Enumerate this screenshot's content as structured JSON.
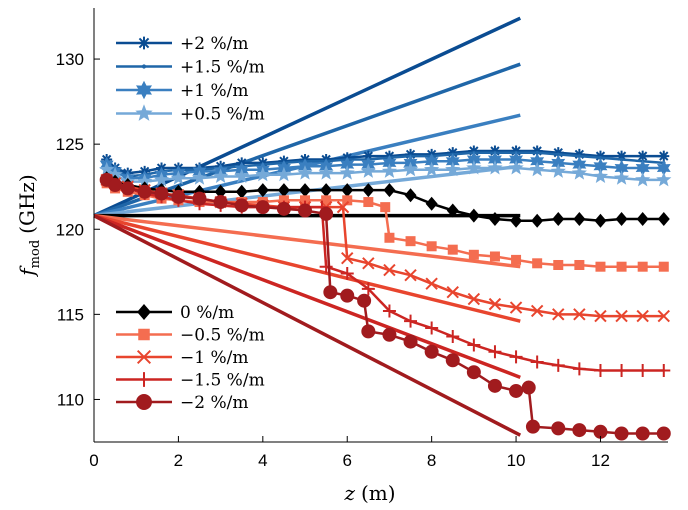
{
  "chart_data": {
    "type": "line",
    "xlabel": "z (m)",
    "xlabel_var": "z",
    "xlabel_unit": "(m)",
    "ylabel": "f_mod (GHz)",
    "ylabel_var": "f",
    "ylabel_sub": "mod",
    "ylabel_unit": "(GHz)",
    "xlim": [
      0,
      13.6
    ],
    "ylim": [
      107.5,
      133
    ],
    "xticks": [
      0,
      2,
      4,
      6,
      8,
      10,
      12
    ],
    "yticks": [
      110,
      115,
      120,
      125,
      130
    ],
    "grid": false,
    "legends": [
      {
        "placement": "top-left",
        "entries": [
          "+2 %/m",
          "+1.5 %/m",
          "+1 %/m",
          "+0.5 %/m"
        ]
      },
      {
        "placement": "bottom-left",
        "entries": [
          "0 %/m",
          "−0.5 %/m",
          "−1 %/m",
          "−1.5 %/m",
          "−2 %/m"
        ]
      }
    ],
    "reference_lines": [
      {
        "slope": "+2 %/m",
        "color": "#0a4c92",
        "points": [
          [
            0,
            120.8
          ],
          [
            10.1,
            132.4
          ]
        ]
      },
      {
        "slope": "+1.5 %/m",
        "color": "#1f66a8",
        "points": [
          [
            0,
            120.8
          ],
          [
            10.1,
            129.7
          ]
        ]
      },
      {
        "slope": "+1 %/m",
        "color": "#3a7fc0",
        "points": [
          [
            0,
            120.8
          ],
          [
            10.1,
            126.7
          ]
        ]
      },
      {
        "slope": "+0.5 %/m",
        "color": "#75a9d8",
        "points": [
          [
            0,
            120.8
          ],
          [
            10.1,
            123.7
          ]
        ]
      },
      {
        "slope": "0 %/m",
        "color": "#000000",
        "points": [
          [
            0,
            120.8
          ],
          [
            10.1,
            120.8
          ]
        ]
      },
      {
        "slope": "−0.5 %/m",
        "color": "#f46d50",
        "points": [
          [
            0,
            120.8
          ],
          [
            10.1,
            117.8
          ]
        ]
      },
      {
        "slope": "−1 %/m",
        "color": "#e8452e",
        "points": [
          [
            0,
            120.8
          ],
          [
            10.1,
            114.6
          ]
        ]
      },
      {
        "slope": "−1.5 %/m",
        "color": "#cc2522",
        "points": [
          [
            0,
            120.8
          ],
          [
            10.1,
            111.3
          ]
        ]
      },
      {
        "slope": "−2 %/m",
        "color": "#a11b1e",
        "points": [
          [
            0,
            120.8
          ],
          [
            10.1,
            107.9
          ]
        ]
      }
    ],
    "series": [
      {
        "name": "+2 %/m",
        "color": "#0a4c92",
        "marker": "asterisk",
        "points": [
          [
            0.3,
            124.1
          ],
          [
            0.5,
            123.6
          ],
          [
            0.8,
            123.3
          ],
          [
            1.2,
            123.4
          ],
          [
            1.6,
            123.6
          ],
          [
            2,
            123.6
          ],
          [
            2.5,
            123.6
          ],
          [
            3,
            123.7
          ],
          [
            3.5,
            123.9
          ],
          [
            4,
            123.9
          ],
          [
            4.5,
            124.0
          ],
          [
            5,
            124.1
          ],
          [
            5.5,
            124.1
          ],
          [
            6,
            124.2
          ],
          [
            6.5,
            124.3
          ],
          [
            7,
            124.3
          ],
          [
            7.5,
            124.4
          ],
          [
            8,
            124.4
          ],
          [
            8.5,
            124.5
          ],
          [
            9,
            124.6
          ],
          [
            9.5,
            124.6
          ],
          [
            10,
            124.6
          ],
          [
            10.5,
            124.6
          ],
          [
            11,
            124.5
          ],
          [
            11.5,
            124.4
          ],
          [
            12,
            124.3
          ],
          [
            12.5,
            124.3
          ],
          [
            13,
            124.3
          ],
          [
            13.5,
            124.3
          ]
        ]
      },
      {
        "name": "+1.5 %/m",
        "color": "#1f66a8",
        "marker": "point",
        "points": [
          [
            0.3,
            123.9
          ],
          [
            0.5,
            123.5
          ],
          [
            0.8,
            123.1
          ],
          [
            1.2,
            123.2
          ],
          [
            1.6,
            123.4
          ],
          [
            2,
            123.5
          ],
          [
            2.5,
            123.5
          ],
          [
            3,
            123.6
          ],
          [
            3.5,
            123.7
          ],
          [
            4,
            123.8
          ],
          [
            4.5,
            123.9
          ],
          [
            5,
            124.0
          ],
          [
            5.5,
            124.0
          ],
          [
            6,
            124.1
          ],
          [
            6.5,
            124.1
          ],
          [
            7,
            124.2
          ],
          [
            7.5,
            124.3
          ],
          [
            8,
            124.3
          ],
          [
            8.5,
            124.4
          ],
          [
            9,
            124.5
          ],
          [
            9.5,
            124.5
          ],
          [
            10,
            124.5
          ],
          [
            10.5,
            124.5
          ],
          [
            11,
            124.4
          ],
          [
            11.5,
            124.3
          ],
          [
            12,
            124.2
          ],
          [
            12.5,
            124.1
          ],
          [
            13,
            124.0
          ],
          [
            13.5,
            123.9
          ]
        ]
      },
      {
        "name": "+1 %/m",
        "color": "#3a7fc0",
        "marker": "hexagram",
        "points": [
          [
            0.3,
            123.8
          ],
          [
            0.5,
            123.4
          ],
          [
            0.8,
            123.0
          ],
          [
            1.2,
            123.0
          ],
          [
            1.6,
            123.2
          ],
          [
            2,
            123.3
          ],
          [
            2.5,
            123.4
          ],
          [
            3,
            123.4
          ],
          [
            3.5,
            123.5
          ],
          [
            4,
            123.5
          ],
          [
            4.5,
            123.6
          ],
          [
            5,
            123.7
          ],
          [
            5.5,
            123.7
          ],
          [
            6,
            123.8
          ],
          [
            6.5,
            123.8
          ],
          [
            7,
            123.9
          ],
          [
            7.5,
            123.9
          ],
          [
            8,
            124.0
          ],
          [
            8.5,
            124.0
          ],
          [
            9,
            124.1
          ],
          [
            9.5,
            124.1
          ],
          [
            10,
            124.1
          ],
          [
            10.5,
            124.0
          ],
          [
            11,
            123.9
          ],
          [
            11.5,
            123.8
          ],
          [
            12,
            123.7
          ],
          [
            12.5,
            123.6
          ],
          [
            13,
            123.6
          ],
          [
            13.5,
            123.6
          ]
        ]
      },
      {
        "name": "+0.5 %/m",
        "color": "#75a9d8",
        "marker": "pentagram",
        "points": [
          [
            0.3,
            123.5
          ],
          [
            0.5,
            123.2
          ],
          [
            0.8,
            122.8
          ],
          [
            1.2,
            122.8
          ],
          [
            1.6,
            122.9
          ],
          [
            2,
            123.0
          ],
          [
            2.5,
            123.0
          ],
          [
            3,
            123.1
          ],
          [
            3.5,
            123.1
          ],
          [
            4,
            123.2
          ],
          [
            4.5,
            123.2
          ],
          [
            5,
            123.3
          ],
          [
            5.5,
            123.3
          ],
          [
            6,
            123.3
          ],
          [
            6.5,
            123.4
          ],
          [
            7,
            123.4
          ],
          [
            7.5,
            123.5
          ],
          [
            8,
            123.5
          ],
          [
            8.5,
            123.5
          ],
          [
            9,
            123.6
          ],
          [
            9.5,
            123.6
          ],
          [
            10,
            123.6
          ],
          [
            10.5,
            123.5
          ],
          [
            11,
            123.4
          ],
          [
            11.5,
            123.3
          ],
          [
            12,
            123.1
          ],
          [
            12.5,
            123.0
          ],
          [
            13,
            122.9
          ],
          [
            13.5,
            122.9
          ]
        ]
      },
      {
        "name": "0 %/m",
        "color": "#000000",
        "marker": "diamond",
        "points": [
          [
            0.3,
            123.0
          ],
          [
            0.5,
            122.8
          ],
          [
            0.8,
            122.6
          ],
          [
            1.2,
            122.4
          ],
          [
            1.6,
            122.3
          ],
          [
            2,
            122.2
          ],
          [
            2.5,
            122.2
          ],
          [
            3,
            122.2
          ],
          [
            3.5,
            122.2
          ],
          [
            4,
            122.3
          ],
          [
            4.5,
            122.3
          ],
          [
            5,
            122.3
          ],
          [
            5.5,
            122.3
          ],
          [
            6,
            122.3
          ],
          [
            6.5,
            122.3
          ],
          [
            7,
            122.3
          ],
          [
            7.5,
            122.0
          ],
          [
            8,
            121.5
          ],
          [
            8.5,
            121.1
          ],
          [
            9,
            120.8
          ],
          [
            9.5,
            120.6
          ],
          [
            10,
            120.5
          ],
          [
            10.5,
            120.5
          ],
          [
            11,
            120.6
          ],
          [
            11.5,
            120.6
          ],
          [
            12,
            120.5
          ],
          [
            12.5,
            120.6
          ],
          [
            13,
            120.6
          ],
          [
            13.5,
            120.6
          ]
        ]
      },
      {
        "name": "−0.5 %/m",
        "color": "#f46d50",
        "marker": "square",
        "points": [
          [
            0.3,
            122.7
          ],
          [
            0.5,
            122.4
          ],
          [
            0.8,
            122.2
          ],
          [
            1.2,
            122.0
          ],
          [
            1.6,
            121.8
          ],
          [
            2,
            121.7
          ],
          [
            2.5,
            121.6
          ],
          [
            3,
            121.6
          ],
          [
            3.5,
            121.6
          ],
          [
            4,
            121.6
          ],
          [
            4.5,
            121.7
          ],
          [
            5,
            121.7
          ],
          [
            5.5,
            121.7
          ],
          [
            6,
            121.7
          ],
          [
            6.5,
            121.6
          ],
          [
            6.9,
            121.3
          ],
          [
            7.0,
            119.5
          ],
          [
            7.5,
            119.3
          ],
          [
            8,
            119.0
          ],
          [
            8.5,
            118.8
          ],
          [
            9,
            118.5
          ],
          [
            9.5,
            118.4
          ],
          [
            10,
            118.2
          ],
          [
            10.5,
            118.0
          ],
          [
            11,
            117.9
          ],
          [
            11.5,
            117.9
          ],
          [
            12,
            117.8
          ],
          [
            12.5,
            117.8
          ],
          [
            13,
            117.8
          ],
          [
            13.5,
            117.8
          ]
        ]
      },
      {
        "name": "−1 %/m",
        "color": "#e8452e",
        "marker": "x",
        "points": [
          [
            0.3,
            122.9
          ],
          [
            0.5,
            122.7
          ],
          [
            0.8,
            122.5
          ],
          [
            1.2,
            122.3
          ],
          [
            1.6,
            122.1
          ],
          [
            2,
            122.0
          ],
          [
            2.5,
            121.8
          ],
          [
            3,
            121.6
          ],
          [
            3.5,
            121.5
          ],
          [
            4,
            121.4
          ],
          [
            4.5,
            121.3
          ],
          [
            5,
            121.3
          ],
          [
            5.5,
            121.3
          ],
          [
            5.9,
            121.3
          ],
          [
            6.0,
            118.3
          ],
          [
            6.5,
            118.0
          ],
          [
            7,
            117.6
          ],
          [
            7.5,
            117.3
          ],
          [
            8,
            116.8
          ],
          [
            8.5,
            116.3
          ],
          [
            9,
            115.9
          ],
          [
            9.5,
            115.6
          ],
          [
            10,
            115.4
          ],
          [
            10.5,
            115.2
          ],
          [
            11,
            115.0
          ],
          [
            11.5,
            115.0
          ],
          [
            12,
            114.9
          ],
          [
            12.5,
            114.9
          ],
          [
            13,
            114.9
          ],
          [
            13.5,
            114.9
          ]
        ]
      },
      {
        "name": "−1.5 %/m",
        "color": "#cc2522",
        "marker": "plus",
        "points": [
          [
            0.3,
            122.9
          ],
          [
            0.5,
            122.6
          ],
          [
            0.8,
            122.4
          ],
          [
            1.2,
            122.1
          ],
          [
            1.6,
            121.9
          ],
          [
            2,
            121.7
          ],
          [
            2.5,
            121.5
          ],
          [
            3,
            121.4
          ],
          [
            3.5,
            121.3
          ],
          [
            4,
            121.3
          ],
          [
            4.5,
            121.3
          ],
          [
            5,
            121.3
          ],
          [
            5.4,
            121.3
          ],
          [
            5.5,
            117.8
          ],
          [
            6,
            117.4
          ],
          [
            6.5,
            116.5
          ],
          [
            7,
            115.2
          ],
          [
            7.5,
            114.6
          ],
          [
            8,
            114.2
          ],
          [
            8.5,
            113.7
          ],
          [
            9,
            113.2
          ],
          [
            9.5,
            112.8
          ],
          [
            10,
            112.5
          ],
          [
            10.5,
            112.2
          ],
          [
            11,
            112.0
          ],
          [
            11.5,
            111.8
          ],
          [
            12,
            111.7
          ],
          [
            12.5,
            111.7
          ],
          [
            13,
            111.7
          ],
          [
            13.5,
            111.7
          ]
        ]
      },
      {
        "name": "−2 %/m",
        "color": "#a11b1e",
        "marker": "circle",
        "points": [
          [
            0.3,
            122.9
          ],
          [
            0.5,
            122.6
          ],
          [
            0.8,
            122.4
          ],
          [
            1.2,
            122.2
          ],
          [
            1.6,
            122.1
          ],
          [
            2,
            121.9
          ],
          [
            2.5,
            121.8
          ],
          [
            3,
            121.6
          ],
          [
            3.5,
            121.4
          ],
          [
            4,
            121.3
          ],
          [
            4.5,
            121.2
          ],
          [
            5,
            121.1
          ],
          [
            5.5,
            120.9
          ],
          [
            5.6,
            116.3
          ],
          [
            6,
            116.1
          ],
          [
            6.4,
            115.8
          ],
          [
            6.5,
            114.0
          ],
          [
            7,
            113.8
          ],
          [
            7.5,
            113.4
          ],
          [
            8,
            112.8
          ],
          [
            8.5,
            112.3
          ],
          [
            9,
            111.6
          ],
          [
            9.5,
            110.8
          ],
          [
            10,
            110.5
          ],
          [
            10.3,
            110.7
          ],
          [
            10.4,
            108.4
          ],
          [
            11,
            108.3
          ],
          [
            11.5,
            108.2
          ],
          [
            12,
            108.1
          ],
          [
            12.5,
            108.0
          ],
          [
            13,
            108.0
          ],
          [
            13.5,
            108.0
          ]
        ]
      }
    ]
  }
}
